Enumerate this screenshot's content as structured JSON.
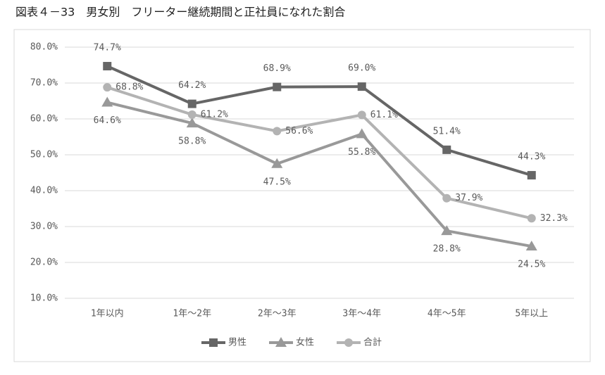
{
  "chart_data": {
    "type": "line",
    "title": "図表４－33　男女別　フリーター継続期間と正社員になれた割合",
    "categories": [
      "1年以内",
      "1年～2年",
      "2年～3年",
      "3年～4年",
      "4年～5年",
      "5年以上"
    ],
    "series": [
      {
        "name": "男性",
        "color": "#666666",
        "marker": "square",
        "values": [
          74.7,
          64.2,
          68.9,
          69.0,
          51.4,
          44.3
        ],
        "value_labels": [
          "74.7%",
          "64.2%",
          "68.9%",
          "69.0%",
          "51.4%",
          "44.3%"
        ]
      },
      {
        "name": "女性",
        "color": "#999999",
        "marker": "triangle",
        "values": [
          64.6,
          58.8,
          47.5,
          55.8,
          28.8,
          24.5
        ],
        "value_labels": [
          "64.6%",
          "58.8%",
          "47.5%",
          "55.8%",
          "28.8%",
          "24.5%"
        ]
      },
      {
        "name": "合計",
        "color": "#b3b3b3",
        "marker": "circle",
        "values": [
          68.8,
          61.2,
          56.6,
          61.1,
          37.9,
          32.3
        ],
        "value_labels": [
          "68.8%",
          "61.2%",
          "56.6%",
          "61.1%",
          "37.9%",
          "32.3%"
        ]
      }
    ],
    "ylim": [
      10,
      80
    ],
    "yticks": [
      {
        "value": 10,
        "label": "10.0%"
      },
      {
        "value": 20,
        "label": "20.0%"
      },
      {
        "value": 30,
        "label": "30.0%"
      },
      {
        "value": 40,
        "label": "40.0%"
      },
      {
        "value": 50,
        "label": "50.0%"
      },
      {
        "value": 60,
        "label": "60.0%"
      },
      {
        "value": 70,
        "label": "70.0%"
      },
      {
        "value": 80,
        "label": "80.0%"
      }
    ],
    "grid": true,
    "legend": "bottom"
  }
}
